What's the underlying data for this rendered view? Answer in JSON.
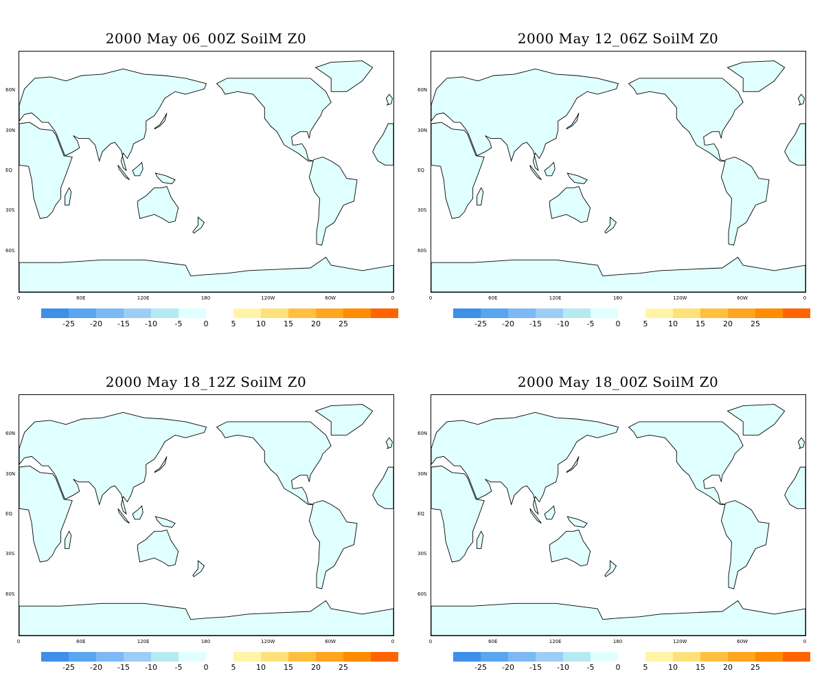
{
  "panels": [
    {
      "title": "2000 May 06_00Z SoilM Z0"
    },
    {
      "title": "2000 May 12_06Z SoilM Z0"
    },
    {
      "title": "2000 May 18_12Z SoilM Z0"
    },
    {
      "title": "2000 May 18_00Z SoilM Z0"
    }
  ],
  "lat_labels": [
    "60N",
    "30N",
    "EQ",
    "30S",
    "60S"
  ],
  "lon_labels": [
    "0",
    "60E",
    "120E",
    "180",
    "120W",
    "60W",
    "0"
  ],
  "colorbar": {
    "negative": {
      "colors": [
        "#3d8fe8",
        "#5aa5f0",
        "#7cb9f5",
        "#9dcdf7",
        "#b5eaf3",
        "#e0ffff"
      ],
      "labels": [
        "-25",
        "-20",
        "-15",
        "-10",
        "-5",
        "0"
      ]
    },
    "positive": {
      "colors": [
        "#fff4a8",
        "#ffe17a",
        "#ffc040",
        "#ffa520",
        "#ff8c00",
        "#ff6400"
      ],
      "labels": [
        "5",
        "10",
        "15",
        "20",
        "25"
      ]
    }
  },
  "land_color": "#e0ffff",
  "coast_color": "#000000"
}
